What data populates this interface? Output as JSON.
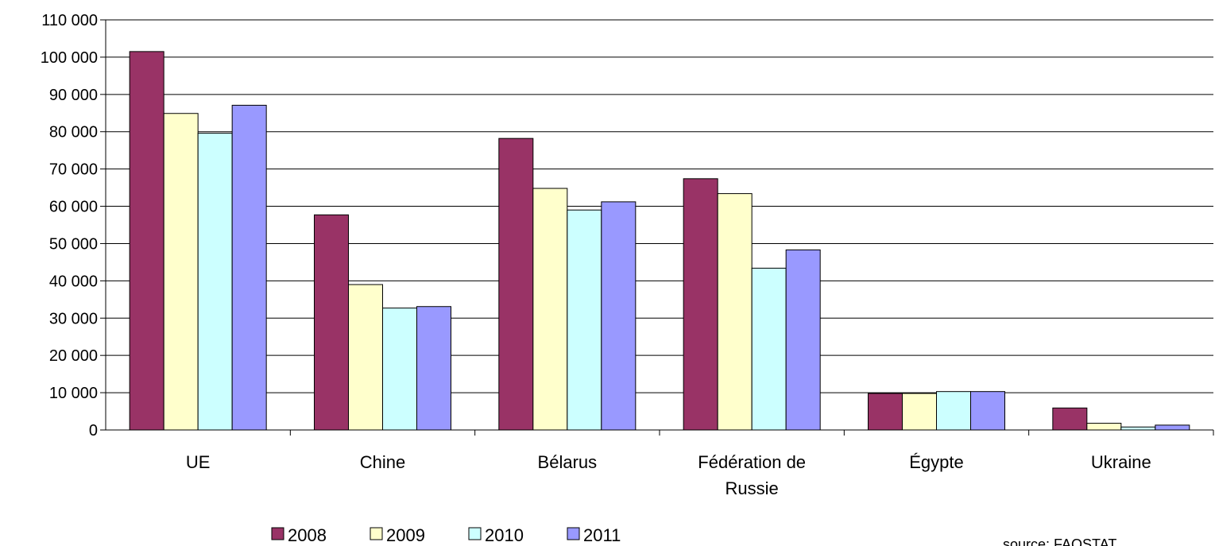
{
  "chart_data": {
    "type": "bar",
    "title": "",
    "xlabel": "",
    "ylabel": "",
    "categories": [
      "UE",
      "Chine",
      "Bélarus",
      "Fédération de Russie",
      "Égypte",
      "Ukraine"
    ],
    "category_lines": [
      [
        "UE"
      ],
      [
        "Chine"
      ],
      [
        "Bélarus"
      ],
      [
        "Fédération de",
        "Russie"
      ],
      [
        "Égypte"
      ],
      [
        "Ukraine"
      ]
    ],
    "series": [
      {
        "name": "2008",
        "color": "#993366",
        "values": [
          101500,
          57700,
          78200,
          67400,
          9800,
          5900
        ]
      },
      {
        "name": "2009",
        "color": "#FFFFCC",
        "values": [
          84900,
          39000,
          64800,
          63400,
          9800,
          1800
        ]
      },
      {
        "name": "2010",
        "color": "#CCFFFF",
        "values": [
          79600,
          32700,
          59000,
          43400,
          10300,
          800
        ]
      },
      {
        "name": "2011",
        "color": "#9999FF",
        "values": [
          87100,
          33100,
          61200,
          48300,
          10300,
          1300
        ]
      }
    ],
    "ylim": [
      0,
      110000
    ],
    "yticks": [
      0,
      10000,
      20000,
      30000,
      40000,
      50000,
      60000,
      70000,
      80000,
      90000,
      100000,
      110000
    ],
    "ytick_labels": [
      "0",
      "10 000",
      "20 000",
      "30 000",
      "40 000",
      "50 000",
      "60 000",
      "70 000",
      "80 000",
      "90 000",
      "100 000",
      "110 000"
    ],
    "grid": true,
    "legend_position": "bottom"
  },
  "source_note": "source: FAOSTAT"
}
